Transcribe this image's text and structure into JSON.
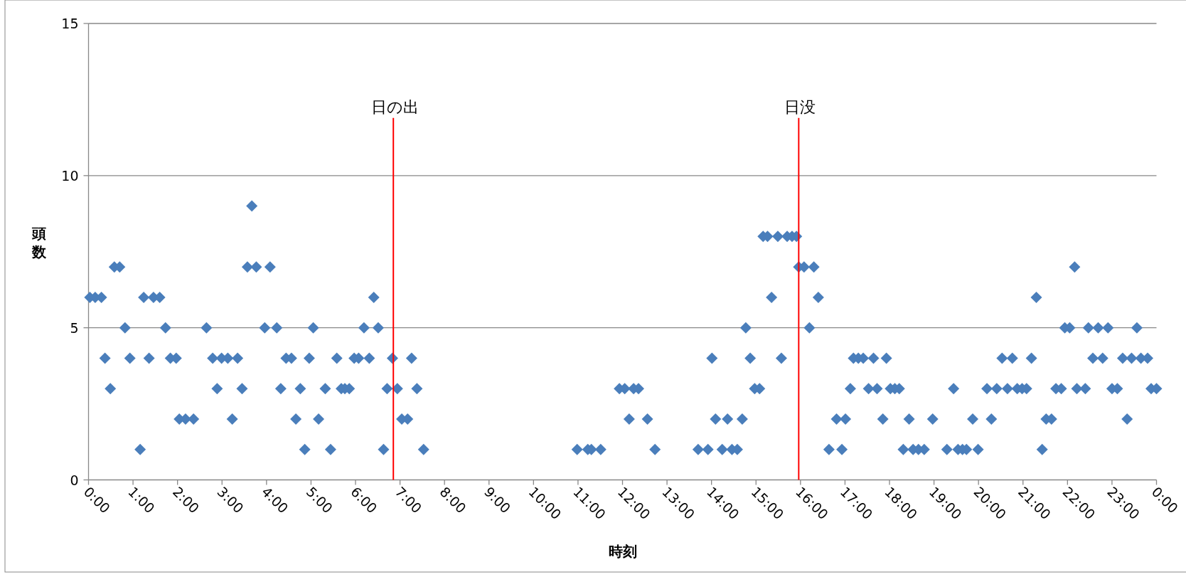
{
  "chart_data": {
    "type": "scatter",
    "xlabel": "時刻",
    "ylabel": "頭数",
    "marker": "diamond",
    "grid": "y",
    "xlim": [
      0,
      24
    ],
    "ylim": [
      0,
      15
    ],
    "yticks": [
      0,
      5,
      10,
      15
    ],
    "xticks": [
      {
        "value": 0,
        "label": "0:00"
      },
      {
        "value": 1,
        "label": "1:00"
      },
      {
        "value": 2,
        "label": "2:00"
      },
      {
        "value": 3,
        "label": "3:00"
      },
      {
        "value": 4,
        "label": "4:00"
      },
      {
        "value": 5,
        "label": "5:00"
      },
      {
        "value": 6,
        "label": "6:00"
      },
      {
        "value": 7,
        "label": "7:00"
      },
      {
        "value": 8,
        "label": "8:00"
      },
      {
        "value": 9,
        "label": "9:00"
      },
      {
        "value": 10,
        "label": "10:00"
      },
      {
        "value": 11,
        "label": "11:00"
      },
      {
        "value": 12,
        "label": "12:00"
      },
      {
        "value": 13,
        "label": "13:00"
      },
      {
        "value": 14,
        "label": "14:00"
      },
      {
        "value": 15,
        "label": "15:00"
      },
      {
        "value": 16,
        "label": "16:00"
      },
      {
        "value": 17,
        "label": "17:00"
      },
      {
        "value": 18,
        "label": "18:00"
      },
      {
        "value": 19,
        "label": "19:00"
      },
      {
        "value": 20,
        "label": "20:00"
      },
      {
        "value": 21,
        "label": "21:00"
      },
      {
        "value": 22,
        "label": "22:00"
      },
      {
        "value": 23,
        "label": "23:00"
      },
      {
        "value": 24,
        "label": "0:00"
      }
    ],
    "ref_lines": [
      {
        "axis": "x",
        "value": 6.85,
        "label": "日の出",
        "color": "#ff0000"
      },
      {
        "axis": "x",
        "value": 15.96,
        "label": "日没",
        "color": "#ff0000"
      }
    ],
    "series": [
      {
        "color": "#4a7ebb",
        "x": [
          0.03,
          0.15,
          0.29,
          0.37,
          0.49,
          0.58,
          0.7,
          0.82,
          0.93,
          1.16,
          1.24,
          1.36,
          1.46,
          1.6,
          1.73,
          1.84,
          1.97,
          2.04,
          2.18,
          2.36,
          2.65,
          2.79,
          2.89,
          2.99,
          3.13,
          3.23,
          3.35,
          3.45,
          3.57,
          3.67,
          3.77,
          3.96,
          4.08,
          4.23,
          4.32,
          4.44,
          4.56,
          4.66,
          4.76,
          4.86,
          4.96,
          5.05,
          5.17,
          5.32,
          5.44,
          5.58,
          5.68,
          5.76,
          5.86,
          5.97,
          6.07,
          6.19,
          6.31,
          6.41,
          6.51,
          6.63,
          6.71,
          6.83,
          6.94,
          7.04,
          7.17,
          7.26,
          7.38,
          7.53,
          10.98,
          11.22,
          11.3,
          11.51,
          11.93,
          12.05,
          12.15,
          12.25,
          12.36,
          12.56,
          12.73,
          13.7,
          13.92,
          14.01,
          14.09,
          14.24,
          14.36,
          14.46,
          14.58,
          14.69,
          14.77,
          14.87,
          14.97,
          15.08,
          15.16,
          15.26,
          15.35,
          15.49,
          15.57,
          15.7,
          15.81,
          15.91,
          15.96,
          16.08,
          16.2,
          16.3,
          16.4,
          16.64,
          16.81,
          16.93,
          17.01,
          17.12,
          17.19,
          17.3,
          17.41,
          17.53,
          17.64,
          17.72,
          17.85,
          17.93,
          18.02,
          18.12,
          18.22,
          18.31,
          18.44,
          18.53,
          18.65,
          18.78,
          18.97,
          19.29,
          19.44,
          19.54,
          19.64,
          19.73,
          19.87,
          19.99,
          20.19,
          20.29,
          20.41,
          20.53,
          20.65,
          20.76,
          20.87,
          20.98,
          21.08,
          21.19,
          21.3,
          21.43,
          21.52,
          21.64,
          21.74,
          21.86,
          21.94,
          22.05,
          22.16,
          22.21,
          22.4,
          22.47,
          22.57,
          22.69,
          22.79,
          22.91,
          23.0,
          23.12,
          23.24,
          23.34,
          23.44,
          23.56,
          23.65,
          23.8,
          23.88,
          24.0
        ],
        "values": [
          6,
          6,
          6,
          4,
          3,
          7,
          7,
          5,
          4,
          1,
          6,
          4,
          6,
          6,
          5,
          4,
          4,
          2,
          2,
          2,
          5,
          4,
          3,
          4,
          4,
          2,
          4,
          3,
          7,
          9,
          7,
          5,
          7,
          5,
          3,
          4,
          4,
          2,
          3,
          1,
          4,
          5,
          2,
          3,
          1,
          4,
          3,
          3,
          3,
          4,
          4,
          5,
          4,
          6,
          5,
          1,
          3,
          4,
          3,
          2,
          2,
          4,
          3,
          1,
          1,
          1,
          1,
          1,
          3,
          3,
          2,
          3,
          3,
          2,
          1,
          1,
          1,
          4,
          2,
          1,
          2,
          1,
          1,
          2,
          5,
          4,
          3,
          3,
          8,
          8,
          6,
          8,
          4,
          8,
          8,
          8,
          7,
          7,
          5,
          7,
          6,
          1,
          2,
          1,
          2,
          3,
          4,
          4,
          4,
          3,
          4,
          3,
          2,
          4,
          3,
          3,
          3,
          1,
          2,
          1,
          1,
          1,
          2,
          1,
          3,
          1,
          1,
          1,
          2,
          1,
          3,
          2,
          3,
          4,
          3,
          4,
          3,
          3,
          3,
          4,
          6,
          1,
          2,
          2,
          3,
          3,
          5,
          5,
          7,
          3,
          3,
          5,
          4,
          5,
          4,
          5,
          3,
          3,
          4,
          2,
          4,
          5,
          4,
          4,
          3,
          3
        ]
      }
    ]
  }
}
